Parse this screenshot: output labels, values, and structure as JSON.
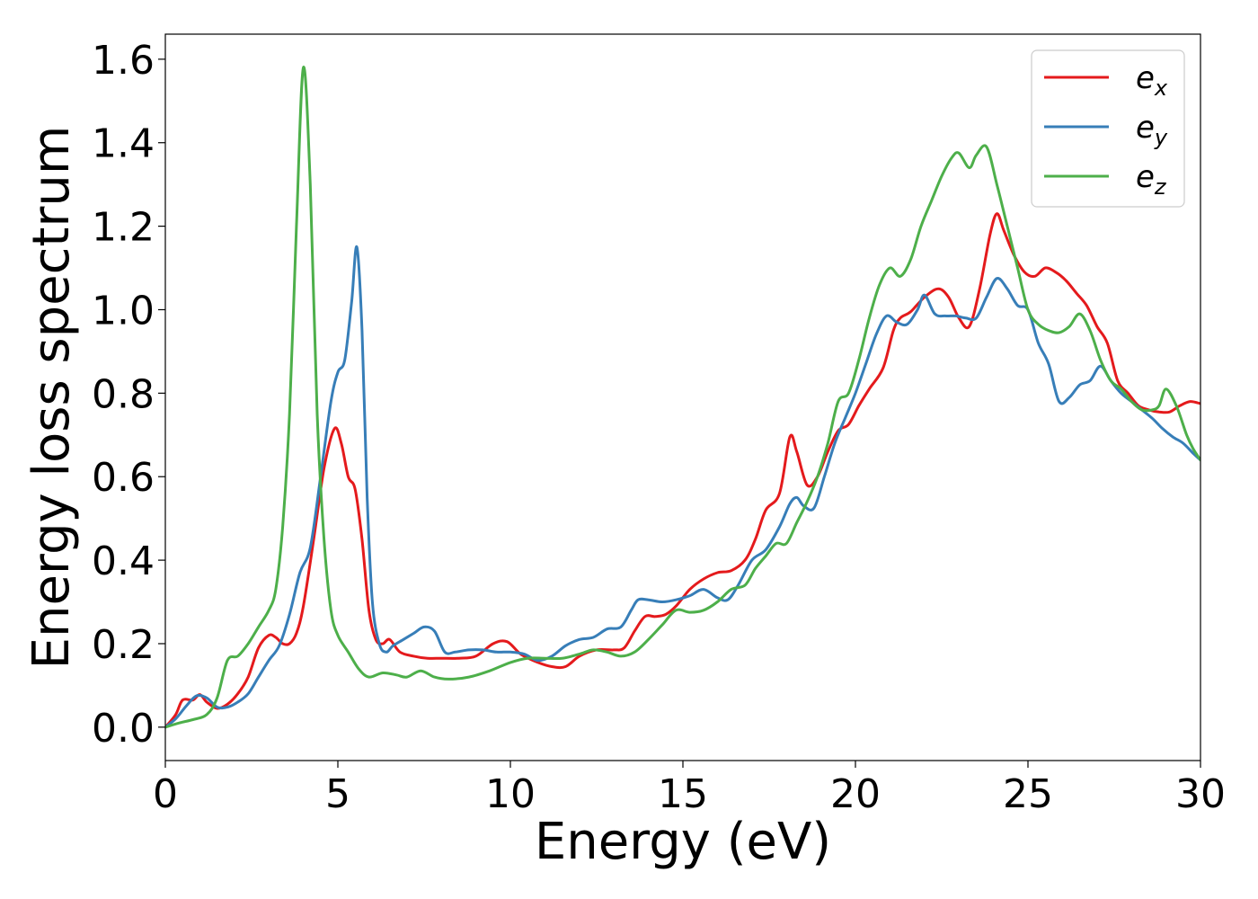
{
  "chart_data": {
    "type": "line",
    "xlabel": "Energy (eV)",
    "ylabel": "Energy loss spectrum",
    "xlim": [
      0,
      30
    ],
    "ylim": [
      -0.08,
      1.66
    ],
    "xticks": [
      0,
      5,
      10,
      15,
      20,
      25,
      30
    ],
    "xtick_labels": [
      "0",
      "5",
      "10",
      "15",
      "20",
      "25",
      "30"
    ],
    "yticks": [
      0.0,
      0.2,
      0.4,
      0.6,
      0.8,
      1.0,
      1.2,
      1.4,
      1.6
    ],
    "ytick_labels": [
      "0.0",
      "0.2",
      "0.4",
      "0.6",
      "0.8",
      "1.0",
      "1.2",
      "1.4",
      "1.6"
    ],
    "grid": false,
    "legend_position": "top-right",
    "series": [
      {
        "name": "e",
        "subscript": "x",
        "color": "#e41a1c",
        "points": [
          [
            0,
            0.0
          ],
          [
            0.3,
            0.03
          ],
          [
            0.5,
            0.065
          ],
          [
            0.8,
            0.065
          ],
          [
            1.0,
            0.078
          ],
          [
            1.2,
            0.06
          ],
          [
            1.5,
            0.045
          ],
          [
            1.8,
            0.055
          ],
          [
            2.1,
            0.08
          ],
          [
            2.4,
            0.12
          ],
          [
            2.7,
            0.19
          ],
          [
            3.0,
            0.22
          ],
          [
            3.2,
            0.215
          ],
          [
            3.4,
            0.2
          ],
          [
            3.6,
            0.2
          ],
          [
            3.8,
            0.225
          ],
          [
            4.0,
            0.29
          ],
          [
            4.3,
            0.45
          ],
          [
            4.6,
            0.62
          ],
          [
            4.9,
            0.715
          ],
          [
            5.1,
            0.68
          ],
          [
            5.3,
            0.6
          ],
          [
            5.5,
            0.57
          ],
          [
            5.7,
            0.45
          ],
          [
            5.9,
            0.28
          ],
          [
            6.1,
            0.21
          ],
          [
            6.3,
            0.2
          ],
          [
            6.5,
            0.21
          ],
          [
            6.8,
            0.18
          ],
          [
            7.2,
            0.17
          ],
          [
            7.6,
            0.165
          ],
          [
            8.0,
            0.165
          ],
          [
            8.5,
            0.165
          ],
          [
            9.0,
            0.17
          ],
          [
            9.5,
            0.2
          ],
          [
            9.9,
            0.205
          ],
          [
            10.3,
            0.175
          ],
          [
            10.8,
            0.155
          ],
          [
            11.2,
            0.145
          ],
          [
            11.6,
            0.145
          ],
          [
            12.0,
            0.17
          ],
          [
            12.5,
            0.185
          ],
          [
            13.0,
            0.185
          ],
          [
            13.3,
            0.19
          ],
          [
            13.6,
            0.23
          ],
          [
            13.9,
            0.265
          ],
          [
            14.2,
            0.265
          ],
          [
            14.5,
            0.27
          ],
          [
            14.8,
            0.29
          ],
          [
            15.2,
            0.33
          ],
          [
            15.6,
            0.355
          ],
          [
            16.0,
            0.37
          ],
          [
            16.4,
            0.375
          ],
          [
            16.8,
            0.4
          ],
          [
            17.1,
            0.45
          ],
          [
            17.4,
            0.52
          ],
          [
            17.8,
            0.56
          ],
          [
            18.1,
            0.695
          ],
          [
            18.3,
            0.66
          ],
          [
            18.6,
            0.58
          ],
          [
            18.9,
            0.6
          ],
          [
            19.2,
            0.66
          ],
          [
            19.5,
            0.71
          ],
          [
            19.8,
            0.725
          ],
          [
            20.1,
            0.77
          ],
          [
            20.4,
            0.81
          ],
          [
            20.8,
            0.86
          ],
          [
            21.1,
            0.95
          ],
          [
            21.3,
            0.98
          ],
          [
            21.6,
            0.995
          ],
          [
            22.0,
            1.03
          ],
          [
            22.4,
            1.05
          ],
          [
            22.7,
            1.03
          ],
          [
            23.0,
            0.98
          ],
          [
            23.3,
            0.96
          ],
          [
            23.6,
            1.05
          ],
          [
            23.9,
            1.18
          ],
          [
            24.1,
            1.23
          ],
          [
            24.3,
            1.19
          ],
          [
            24.6,
            1.13
          ],
          [
            24.9,
            1.09
          ],
          [
            25.2,
            1.08
          ],
          [
            25.5,
            1.1
          ],
          [
            25.8,
            1.09
          ],
          [
            26.1,
            1.07
          ],
          [
            26.4,
            1.04
          ],
          [
            26.7,
            1.01
          ],
          [
            27.0,
            0.96
          ],
          [
            27.3,
            0.92
          ],
          [
            27.6,
            0.83
          ],
          [
            27.9,
            0.8
          ],
          [
            28.2,
            0.77
          ],
          [
            28.5,
            0.76
          ],
          [
            28.8,
            0.755
          ],
          [
            29.1,
            0.755
          ],
          [
            29.4,
            0.77
          ],
          [
            29.7,
            0.78
          ],
          [
            30.0,
            0.775
          ]
        ]
      },
      {
        "name": "e",
        "subscript": "y",
        "color": "#377eb8",
        "points": [
          [
            0,
            0.0
          ],
          [
            0.3,
            0.02
          ],
          [
            0.6,
            0.05
          ],
          [
            0.9,
            0.075
          ],
          [
            1.2,
            0.07
          ],
          [
            1.5,
            0.048
          ],
          [
            1.8,
            0.048
          ],
          [
            2.1,
            0.06
          ],
          [
            2.4,
            0.08
          ],
          [
            2.7,
            0.12
          ],
          [
            3.0,
            0.16
          ],
          [
            3.3,
            0.195
          ],
          [
            3.6,
            0.27
          ],
          [
            3.9,
            0.37
          ],
          [
            4.2,
            0.43
          ],
          [
            4.5,
            0.6
          ],
          [
            4.8,
            0.78
          ],
          [
            5.0,
            0.85
          ],
          [
            5.2,
            0.88
          ],
          [
            5.4,
            1.02
          ],
          [
            5.55,
            1.15
          ],
          [
            5.7,
            0.95
          ],
          [
            5.85,
            0.55
          ],
          [
            6.0,
            0.3
          ],
          [
            6.2,
            0.2
          ],
          [
            6.4,
            0.18
          ],
          [
            6.6,
            0.195
          ],
          [
            6.9,
            0.21
          ],
          [
            7.2,
            0.225
          ],
          [
            7.5,
            0.24
          ],
          [
            7.8,
            0.23
          ],
          [
            8.1,
            0.18
          ],
          [
            8.4,
            0.18
          ],
          [
            8.8,
            0.185
          ],
          [
            9.2,
            0.185
          ],
          [
            9.6,
            0.18
          ],
          [
            10.0,
            0.18
          ],
          [
            10.4,
            0.175
          ],
          [
            10.8,
            0.16
          ],
          [
            11.2,
            0.17
          ],
          [
            11.6,
            0.195
          ],
          [
            12.0,
            0.21
          ],
          [
            12.4,
            0.215
          ],
          [
            12.8,
            0.235
          ],
          [
            13.2,
            0.24
          ],
          [
            13.5,
            0.28
          ],
          [
            13.7,
            0.305
          ],
          [
            14.0,
            0.305
          ],
          [
            14.4,
            0.3
          ],
          [
            14.8,
            0.305
          ],
          [
            15.2,
            0.315
          ],
          [
            15.6,
            0.33
          ],
          [
            16.0,
            0.31
          ],
          [
            16.3,
            0.305
          ],
          [
            16.6,
            0.34
          ],
          [
            17.0,
            0.4
          ],
          [
            17.4,
            0.425
          ],
          [
            17.8,
            0.48
          ],
          [
            18.1,
            0.535
          ],
          [
            18.3,
            0.55
          ],
          [
            18.5,
            0.53
          ],
          [
            18.8,
            0.525
          ],
          [
            19.1,
            0.6
          ],
          [
            19.4,
            0.68
          ],
          [
            19.7,
            0.74
          ],
          [
            20.0,
            0.8
          ],
          [
            20.3,
            0.87
          ],
          [
            20.6,
            0.94
          ],
          [
            20.9,
            0.985
          ],
          [
            21.2,
            0.97
          ],
          [
            21.5,
            0.965
          ],
          [
            21.8,
            1.0
          ],
          [
            22.0,
            1.035
          ],
          [
            22.3,
            0.99
          ],
          [
            22.6,
            0.985
          ],
          [
            22.9,
            0.985
          ],
          [
            23.2,
            0.98
          ],
          [
            23.5,
            0.98
          ],
          [
            23.8,
            1.03
          ],
          [
            24.1,
            1.075
          ],
          [
            24.4,
            1.05
          ],
          [
            24.7,
            1.01
          ],
          [
            25.0,
            1.0
          ],
          [
            25.3,
            0.92
          ],
          [
            25.6,
            0.87
          ],
          [
            25.9,
            0.78
          ],
          [
            26.2,
            0.79
          ],
          [
            26.5,
            0.82
          ],
          [
            26.8,
            0.83
          ],
          [
            27.1,
            0.865
          ],
          [
            27.4,
            0.83
          ],
          [
            27.7,
            0.8
          ],
          [
            28.0,
            0.78
          ],
          [
            28.3,
            0.76
          ],
          [
            28.6,
            0.74
          ],
          [
            28.9,
            0.715
          ],
          [
            29.2,
            0.695
          ],
          [
            29.5,
            0.68
          ],
          [
            29.8,
            0.655
          ],
          [
            30.0,
            0.64
          ]
        ]
      },
      {
        "name": "e",
        "subscript": "z",
        "color": "#4daf4a",
        "points": [
          [
            0,
            0.0
          ],
          [
            0.4,
            0.01
          ],
          [
            0.8,
            0.018
          ],
          [
            1.2,
            0.03
          ],
          [
            1.5,
            0.07
          ],
          [
            1.8,
            0.16
          ],
          [
            2.1,
            0.17
          ],
          [
            2.4,
            0.2
          ],
          [
            2.7,
            0.24
          ],
          [
            3.0,
            0.28
          ],
          [
            3.2,
            0.33
          ],
          [
            3.4,
            0.48
          ],
          [
            3.6,
            0.75
          ],
          [
            3.8,
            1.2
          ],
          [
            4.0,
            1.58
          ],
          [
            4.2,
            1.3
          ],
          [
            4.4,
            0.75
          ],
          [
            4.6,
            0.45
          ],
          [
            4.8,
            0.28
          ],
          [
            5.0,
            0.22
          ],
          [
            5.3,
            0.18
          ],
          [
            5.6,
            0.14
          ],
          [
            5.9,
            0.12
          ],
          [
            6.3,
            0.13
          ],
          [
            6.7,
            0.125
          ],
          [
            7.0,
            0.12
          ],
          [
            7.4,
            0.135
          ],
          [
            7.8,
            0.12
          ],
          [
            8.2,
            0.115
          ],
          [
            8.8,
            0.12
          ],
          [
            9.4,
            0.135
          ],
          [
            10.0,
            0.155
          ],
          [
            10.5,
            0.165
          ],
          [
            11.0,
            0.165
          ],
          [
            11.5,
            0.165
          ],
          [
            12.0,
            0.175
          ],
          [
            12.4,
            0.185
          ],
          [
            12.8,
            0.18
          ],
          [
            13.2,
            0.17
          ],
          [
            13.6,
            0.18
          ],
          [
            14.0,
            0.21
          ],
          [
            14.4,
            0.245
          ],
          [
            14.8,
            0.28
          ],
          [
            15.2,
            0.275
          ],
          [
            15.6,
            0.28
          ],
          [
            16.0,
            0.3
          ],
          [
            16.4,
            0.33
          ],
          [
            16.8,
            0.34
          ],
          [
            17.1,
            0.38
          ],
          [
            17.4,
            0.41
          ],
          [
            17.7,
            0.44
          ],
          [
            18.0,
            0.44
          ],
          [
            18.3,
            0.49
          ],
          [
            18.6,
            0.54
          ],
          [
            18.9,
            0.6
          ],
          [
            19.2,
            0.68
          ],
          [
            19.5,
            0.78
          ],
          [
            19.8,
            0.8
          ],
          [
            20.1,
            0.88
          ],
          [
            20.4,
            0.98
          ],
          [
            20.7,
            1.06
          ],
          [
            21.0,
            1.1
          ],
          [
            21.3,
            1.08
          ],
          [
            21.6,
            1.12
          ],
          [
            21.9,
            1.2
          ],
          [
            22.2,
            1.26
          ],
          [
            22.5,
            1.32
          ],
          [
            22.8,
            1.365
          ],
          [
            23.0,
            1.375
          ],
          [
            23.3,
            1.34
          ],
          [
            23.5,
            1.37
          ],
          [
            23.8,
            1.39
          ],
          [
            24.1,
            1.3
          ],
          [
            24.4,
            1.2
          ],
          [
            24.7,
            1.1
          ],
          [
            25.0,
            1.0
          ],
          [
            25.3,
            0.965
          ],
          [
            25.6,
            0.95
          ],
          [
            25.9,
            0.945
          ],
          [
            26.2,
            0.96
          ],
          [
            26.5,
            0.99
          ],
          [
            26.8,
            0.95
          ],
          [
            27.1,
            0.88
          ],
          [
            27.4,
            0.83
          ],
          [
            27.7,
            0.81
          ],
          [
            28.0,
            0.78
          ],
          [
            28.3,
            0.76
          ],
          [
            28.6,
            0.76
          ],
          [
            28.8,
            0.77
          ],
          [
            29.0,
            0.81
          ],
          [
            29.3,
            0.77
          ],
          [
            29.6,
            0.7
          ],
          [
            29.8,
            0.665
          ],
          [
            30.0,
            0.64
          ]
        ]
      }
    ]
  }
}
